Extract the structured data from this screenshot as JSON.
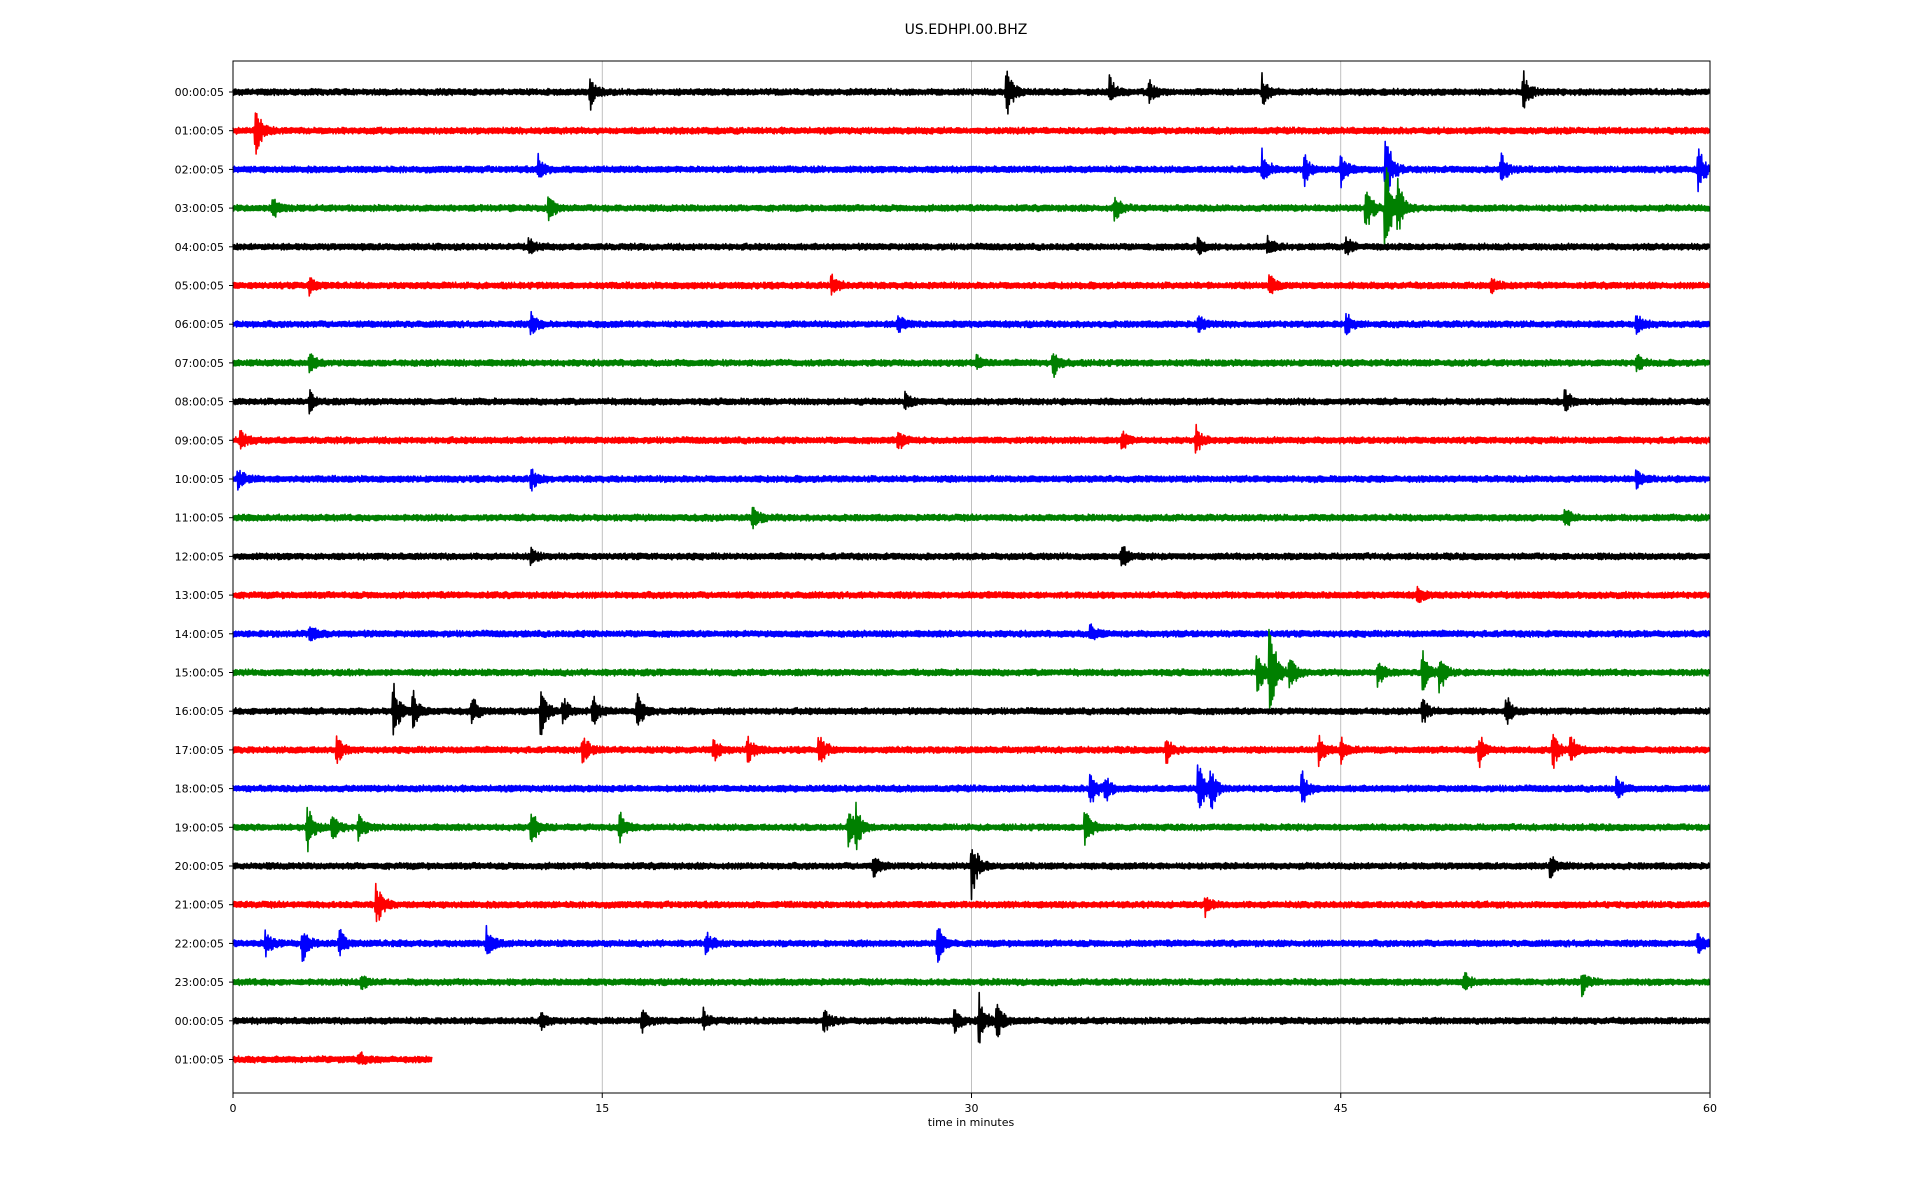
{
  "chart_data": {
    "type": "line",
    "title": "US.EDHPI.00.BHZ",
    "xlabel": "time in minutes",
    "ylabel": "",
    "xlim": [
      0,
      60
    ],
    "xticks": [
      0,
      15,
      30,
      45,
      60
    ],
    "xtick_labels": [
      "0",
      "15",
      "30",
      "45",
      "60"
    ],
    "grid": "vertical lines at x ticks",
    "colors": [
      "#000000",
      "#ff0000",
      "#0000ff",
      "#008000"
    ],
    "series": [
      {
        "label": "00:00:05",
        "end": 60,
        "events": [
          [
            14.5,
            0.9
          ],
          [
            31.4,
            1.6
          ],
          [
            35.6,
            0.7
          ],
          [
            37.2,
            0.6
          ],
          [
            41.8,
            0.8
          ],
          [
            52.4,
            1.2
          ]
        ]
      },
      {
        "label": "01:00:05",
        "end": 60,
        "events": [
          [
            0.9,
            1.5
          ]
        ]
      },
      {
        "label": "02:00:05",
        "end": 60,
        "events": [
          [
            12.4,
            0.7
          ],
          [
            41.8,
            1.0
          ],
          [
            43.5,
            0.8
          ],
          [
            45.0,
            1.0
          ],
          [
            46.8,
            2.5
          ],
          [
            51.5,
            0.9
          ],
          [
            59.5,
            1.4
          ]
        ]
      },
      {
        "label": "03:00:05",
        "end": 60,
        "events": [
          [
            1.6,
            0.7
          ],
          [
            12.8,
            0.8
          ],
          [
            35.8,
            0.8
          ],
          [
            46.0,
            1.5
          ],
          [
            46.8,
            4.0
          ],
          [
            47.3,
            1.3
          ]
        ]
      },
      {
        "label": "04:00:05",
        "end": 60,
        "events": [
          [
            12.0,
            0.5
          ],
          [
            39.2,
            0.5
          ],
          [
            42.0,
            0.5
          ],
          [
            45.2,
            0.5
          ]
        ]
      },
      {
        "label": "05:00:05",
        "end": 60,
        "events": [
          [
            3.1,
            0.5
          ],
          [
            24.3,
            0.6
          ],
          [
            42.1,
            0.7
          ],
          [
            51.1,
            0.5
          ]
        ]
      },
      {
        "label": "06:00:05",
        "end": 60,
        "events": [
          [
            12.1,
            0.6
          ],
          [
            27.0,
            0.5
          ],
          [
            39.2,
            0.5
          ],
          [
            45.2,
            0.6
          ],
          [
            57.0,
            0.6
          ]
        ]
      },
      {
        "label": "07:00:05",
        "end": 60,
        "events": [
          [
            3.1,
            0.6
          ],
          [
            30.2,
            0.5
          ],
          [
            33.3,
            0.8
          ],
          [
            57.0,
            0.5
          ]
        ]
      },
      {
        "label": "08:00:05",
        "end": 60,
        "events": [
          [
            3.1,
            0.6
          ],
          [
            27.3,
            0.5
          ],
          [
            54.1,
            0.6
          ]
        ]
      },
      {
        "label": "09:00:05",
        "end": 60,
        "events": [
          [
            0.3,
            0.6
          ],
          [
            27.0,
            0.6
          ],
          [
            36.1,
            0.5
          ],
          [
            39.1,
            0.7
          ]
        ]
      },
      {
        "label": "10:00:05",
        "end": 60,
        "events": [
          [
            0.2,
            0.6
          ],
          [
            12.1,
            0.7
          ],
          [
            57.0,
            0.5
          ]
        ]
      },
      {
        "label": "11:00:05",
        "end": 60,
        "events": [
          [
            21.1,
            0.7
          ],
          [
            54.1,
            0.6
          ]
        ]
      },
      {
        "label": "12:00:05",
        "end": 60,
        "events": [
          [
            12.1,
            0.5
          ],
          [
            36.1,
            0.6
          ]
        ]
      },
      {
        "label": "13:00:05",
        "end": 60,
        "events": [
          [
            48.1,
            0.5
          ]
        ]
      },
      {
        "label": "14:00:05",
        "end": 60,
        "events": [
          [
            3.1,
            0.5
          ],
          [
            34.8,
            0.5
          ]
        ]
      },
      {
        "label": "15:00:05",
        "end": 60,
        "events": [
          [
            41.6,
            1.5
          ],
          [
            42.1,
            3.5
          ],
          [
            42.9,
            1.2
          ],
          [
            46.5,
            0.8
          ],
          [
            48.3,
            1.4
          ],
          [
            49.0,
            1.2
          ]
        ]
      },
      {
        "label": "16:00:05",
        "end": 60,
        "events": [
          [
            6.5,
            1.8
          ],
          [
            7.3,
            1.0
          ],
          [
            9.7,
            0.8
          ],
          [
            12.5,
            1.5
          ],
          [
            13.4,
            0.9
          ],
          [
            14.6,
            1.0
          ],
          [
            16.4,
            1.2
          ],
          [
            48.3,
            0.7
          ],
          [
            51.7,
            1.0
          ]
        ]
      },
      {
        "label": "17:00:05",
        "end": 60,
        "events": [
          [
            4.2,
            0.8
          ],
          [
            14.2,
            0.9
          ],
          [
            19.5,
            0.7
          ],
          [
            20.9,
            0.9
          ],
          [
            23.8,
            1.0
          ],
          [
            37.9,
            0.8
          ],
          [
            44.1,
            0.9
          ],
          [
            45.0,
            0.8
          ],
          [
            50.6,
            1.0
          ],
          [
            53.6,
            1.2
          ],
          [
            54.3,
            0.8
          ]
        ]
      },
      {
        "label": "18:00:05",
        "end": 60,
        "events": [
          [
            34.8,
            1.2
          ],
          [
            35.4,
            0.8
          ],
          [
            39.2,
            1.8
          ],
          [
            39.7,
            1.2
          ],
          [
            43.4,
            1.0
          ],
          [
            56.2,
            0.6
          ]
        ]
      },
      {
        "label": "19:00:05",
        "end": 60,
        "events": [
          [
            3.0,
            1.6
          ],
          [
            4.0,
            0.8
          ],
          [
            5.1,
            0.8
          ],
          [
            12.1,
            1.0
          ],
          [
            15.7,
            0.9
          ],
          [
            25.0,
            1.4
          ],
          [
            25.3,
            0.9
          ],
          [
            34.6,
            1.3
          ]
        ]
      },
      {
        "label": "20:00:05",
        "end": 60,
        "events": [
          [
            26.0,
            0.8
          ],
          [
            30.0,
            1.8
          ],
          [
            53.5,
            0.6
          ]
        ]
      },
      {
        "label": "21:00:05",
        "end": 60,
        "events": [
          [
            5.8,
            1.4
          ],
          [
            39.5,
            0.5
          ]
        ]
      },
      {
        "label": "22:00:05",
        "end": 60,
        "events": [
          [
            1.3,
            0.7
          ],
          [
            2.8,
            1.0
          ],
          [
            4.3,
            0.9
          ],
          [
            10.3,
            1.0
          ],
          [
            19.2,
            0.6
          ],
          [
            28.6,
            1.3
          ],
          [
            59.5,
            0.6
          ]
        ]
      },
      {
        "label": "23:00:05",
        "end": 60,
        "events": [
          [
            5.2,
            0.5
          ],
          [
            50.0,
            0.6
          ],
          [
            54.8,
            0.6
          ]
        ]
      },
      {
        "label": "00:00:05",
        "end": 60,
        "events": [
          [
            12.5,
            0.5
          ],
          [
            16.6,
            0.7
          ],
          [
            19.1,
            0.6
          ],
          [
            24.0,
            0.7
          ],
          [
            29.3,
            0.7
          ],
          [
            30.3,
            1.5
          ],
          [
            31.0,
            1.2
          ]
        ]
      },
      {
        "label": "01:00:05",
        "end": 8.1,
        "events": [
          [
            5.1,
            0.4
          ]
        ]
      }
    ]
  }
}
